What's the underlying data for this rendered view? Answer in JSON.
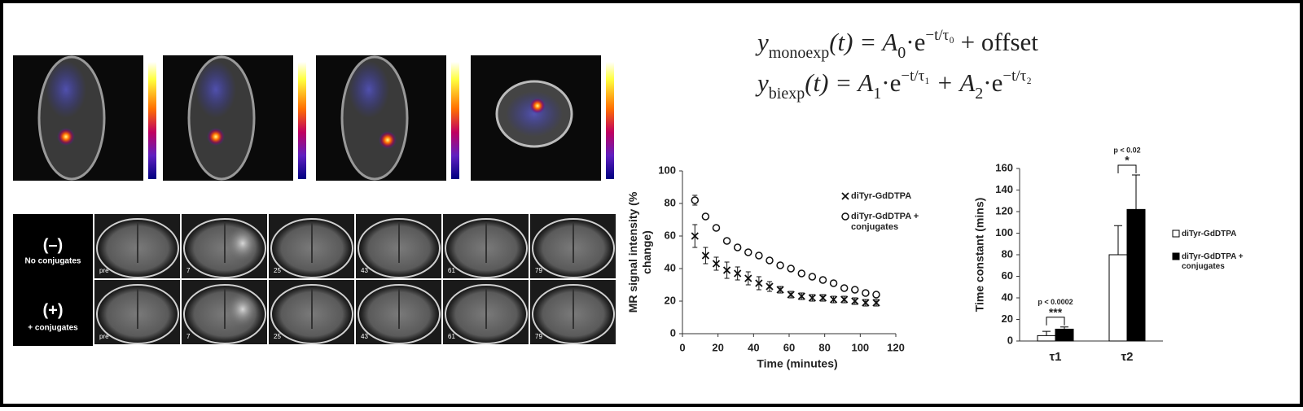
{
  "mri_panel": {
    "rows": [
      {
        "sign": "(–)",
        "label": "No conjugates"
      },
      {
        "sign": "(+)",
        "label": "+ conjugates"
      }
    ],
    "timepoints": [
      "pre",
      "7",
      "25",
      "43",
      "61",
      "79"
    ]
  },
  "equations": [
    {
      "parts": [
        {
          "text": "y"
        },
        {
          "text": "monoexp",
          "baseline": "sub"
        },
        {
          "text": "(t) = A"
        },
        {
          "text": "0",
          "baseline": "sub"
        },
        {
          "text": "·e"
        },
        {
          "text": "−t/τ₀",
          "baseline": "super"
        },
        {
          "text": " + offset"
        }
      ]
    },
    {
      "parts": [
        {
          "text": "y"
        },
        {
          "text": "biexp",
          "baseline": "sub"
        },
        {
          "text": "(t) = A"
        },
        {
          "text": "1",
          "baseline": "sub"
        },
        {
          "text": "·e"
        },
        {
          "text": "−t/τ₁",
          "baseline": "super"
        },
        {
          "text": " + A"
        },
        {
          "text": "2",
          "baseline": "sub"
        },
        {
          "text": "·e"
        },
        {
          "text": "−t/τ₂",
          "baseline": "super"
        }
      ]
    }
  ],
  "chart_data": [
    {
      "type": "scatter",
      "x_label": "Time (minutes)",
      "y_label": "MR signal intensity (% change)",
      "x": [
        7,
        13,
        19,
        25,
        31,
        37,
        43,
        49,
        55,
        61,
        67,
        73,
        79,
        85,
        91,
        97,
        103,
        109
      ],
      "series": [
        {
          "name": "diTyr-GdDTPA",
          "color": "#111111",
          "marker": "x",
          "values": [
            60,
            48,
            43,
            39,
            37,
            34,
            31,
            29,
            27,
            24,
            23,
            22,
            22,
            21,
            21,
            20,
            19,
            19
          ],
          "errors": [
            7,
            5,
            4,
            5,
            4,
            4,
            4,
            3,
            2,
            2,
            2,
            2,
            2,
            2,
            2,
            2,
            2,
            2
          ]
        },
        {
          "name": "diTyr-GdDTPA + conjugates",
          "color": "#111111",
          "marker": "circle",
          "values": [
            82,
            72,
            65,
            57,
            53,
            50,
            48,
            45,
            42,
            40,
            37,
            35,
            33,
            31,
            28,
            27,
            25,
            24
          ],
          "errors": [
            3,
            1,
            1,
            1,
            1,
            1,
            1,
            1,
            1,
            1,
            1,
            1,
            1,
            1,
            1,
            1,
            1,
            1
          ]
        }
      ],
      "xlim": [
        0,
        120
      ],
      "xticks": [
        0,
        20,
        40,
        60,
        80,
        100,
        120
      ],
      "ylim": [
        0,
        100
      ],
      "yticks": [
        0,
        20,
        40,
        60,
        80,
        100
      ]
    },
    {
      "type": "bar",
      "y_label": "Time constant (mins)",
      "categories": [
        "τ1",
        "τ2"
      ],
      "series": [
        {
          "name": "diTyr-GdDTPA",
          "color": "#ffffff",
          "values": [
            5,
            80
          ],
          "errors": [
            4,
            27
          ]
        },
        {
          "name": "diTyr-GdDTPA + conjugates",
          "color": "#000000",
          "values": [
            11,
            122
          ],
          "errors": [
            2,
            32
          ]
        }
      ],
      "annotations": [
        {
          "p": "p < 0.0002",
          "stars": "***"
        },
        {
          "p": "p < 0.02",
          "stars": "*"
        }
      ],
      "ylim": [
        0,
        160
      ],
      "yticks": [
        0,
        20,
        40,
        60,
        80,
        100,
        120,
        140,
        160
      ]
    }
  ]
}
